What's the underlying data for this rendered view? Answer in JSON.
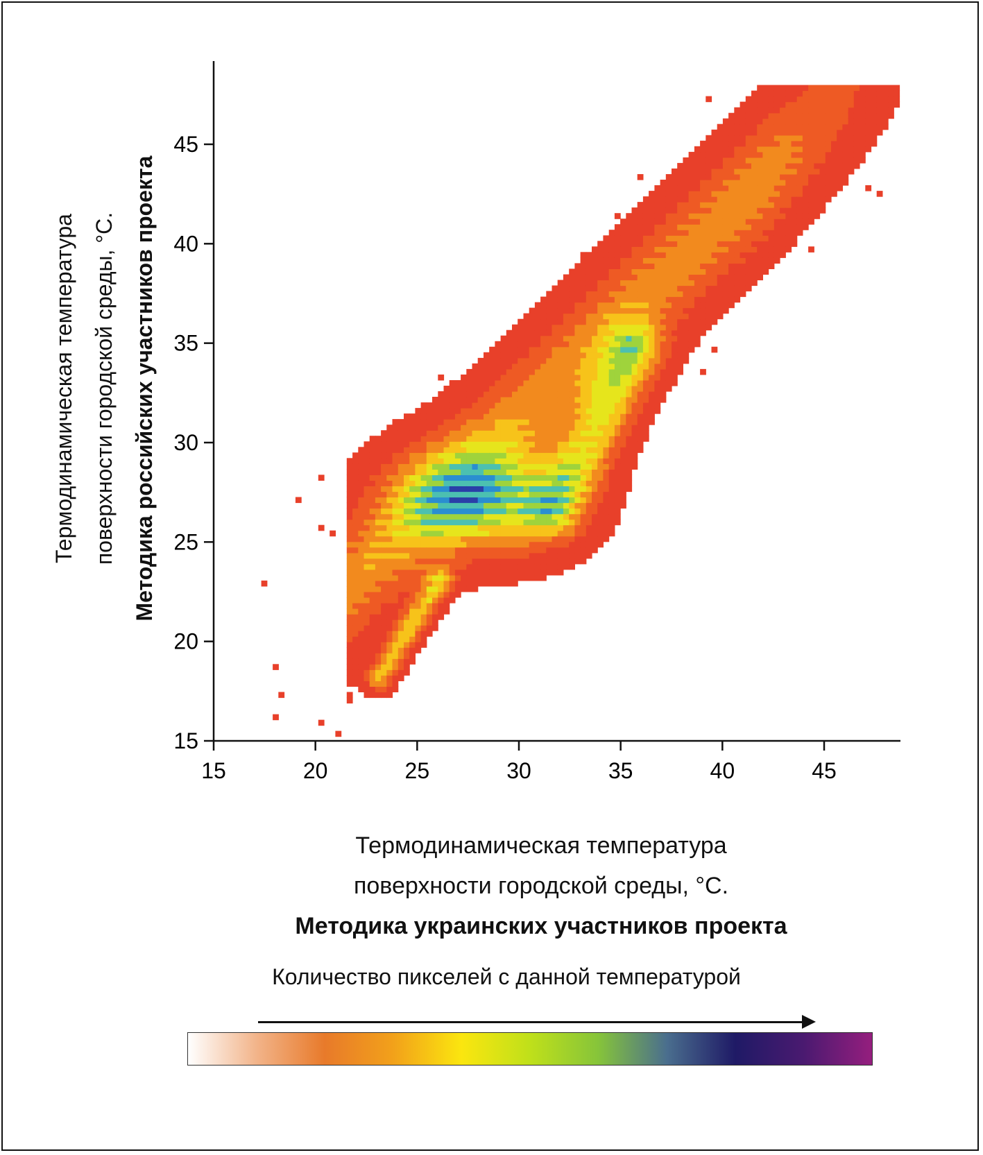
{
  "chart_data": {
    "type": "heatmap",
    "x_label": {
      "line1": "Термодинамическая температура",
      "line2": "поверхности городской среды, °С.",
      "line3": "Методика украинских участников проекта"
    },
    "y_label": {
      "line1": "Термодинамическая температура",
      "line2": "поверхности городской среды, °С.",
      "line3": "Методика российских участников проекта"
    },
    "x_ticks": [
      "15",
      "20",
      "25",
      "30",
      "35",
      "40",
      "45"
    ],
    "y_ticks": [
      "15",
      "20",
      "25",
      "30",
      "35",
      "40",
      "45"
    ],
    "xlim": [
      15,
      49
    ],
    "ylim": [
      15,
      48
    ],
    "grid": false,
    "density_scale": {
      "title": "Количество пикселей с данной температурой",
      "colors": [
        "#ffffff",
        "#f2b48a",
        "#e87a2a",
        "#f2a11a",
        "#fbe60f",
        "#bfe01a",
        "#86c43a",
        "#4a6e8e",
        "#1f1a66",
        "#4a1a70",
        "#951e7e"
      ]
    },
    "density_model": {
      "main_band": {
        "slope": 1.0,
        "intercept": 1.2,
        "width": 3.2,
        "x_range": [
          22.5,
          48.5
        ]
      },
      "core_peak": {
        "x": 28.0,
        "y": 27.0,
        "sx": 2.8,
        "sy": 1.8
      },
      "secondary_ridge": {
        "points": [
          [
            31.5,
            26.5
          ],
          [
            33.5,
            30.0
          ],
          [
            35.5,
            34.5
          ]
        ]
      },
      "tail": {
        "from": [
          23.0,
          18.0
        ],
        "to": [
          26.0,
          23.0
        ]
      }
    }
  }
}
